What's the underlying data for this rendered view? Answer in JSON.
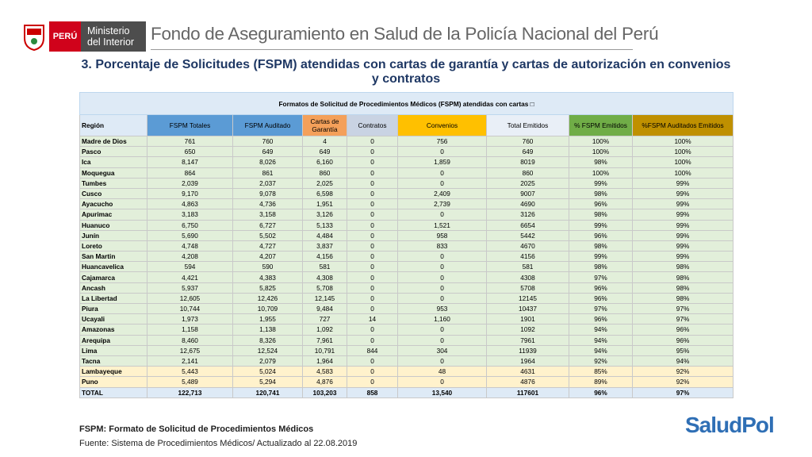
{
  "header": {
    "country": "PERÚ",
    "ministry_line1": "Ministerio",
    "ministry_line2": "del Interior",
    "organization": "Fondo de Aseguramiento en Salud de la Policía Nacional del Perú"
  },
  "title": "3. Porcentaje de Solicitudes (FSPM) atendidas con cartas de garantía y cartas de autorización en convenios y contratos",
  "table": {
    "caption": "Formatos de Solicitud de Procedimientos Médicos (FSPM) atendidas con cartas □",
    "columns": [
      "Región",
      "FSPM Totales",
      "FSPM Auditado",
      "Cartas de Garantía",
      "Contratos",
      "Convenios",
      "Total Emitidos",
      "% FSPM Emitidos",
      "%FSPM Auditados Emitidos"
    ],
    "rows": [
      [
        "Madre de Dios",
        "761",
        "760",
        "4",
        "0",
        "756",
        "760",
        "100%",
        "100%"
      ],
      [
        "Pasco",
        "650",
        "649",
        "649",
        "0",
        "0",
        "649",
        "100%",
        "100%"
      ],
      [
        "Ica",
        "8,147",
        "8,026",
        "6,160",
        "0",
        "1,859",
        "8019",
        "98%",
        "100%"
      ],
      [
        "Moquegua",
        "864",
        "861",
        "860",
        "0",
        "0",
        "860",
        "100%",
        "100%"
      ],
      [
        "Tumbes",
        "2,039",
        "2,037",
        "2,025",
        "0",
        "0",
        "2025",
        "99%",
        "99%"
      ],
      [
        "Cusco",
        "9,170",
        "9,078",
        "6,598",
        "0",
        "2,409",
        "9007",
        "98%",
        "99%"
      ],
      [
        "Ayacucho",
        "4,863",
        "4,736",
        "1,951",
        "0",
        "2,739",
        "4690",
        "96%",
        "99%"
      ],
      [
        "Apurimac",
        "3,183",
        "3,158",
        "3,126",
        "0",
        "0",
        "3126",
        "98%",
        "99%"
      ],
      [
        "Huanuco",
        "6,750",
        "6,727",
        "5,133",
        "0",
        "1,521",
        "6654",
        "99%",
        "99%"
      ],
      [
        "Junín",
        "5,690",
        "5,502",
        "4,484",
        "0",
        "958",
        "5442",
        "96%",
        "99%"
      ],
      [
        "Loreto",
        "4,748",
        "4,727",
        "3,837",
        "0",
        "833",
        "4670",
        "98%",
        "99%"
      ],
      [
        "San Martin",
        "4,208",
        "4,207",
        "4,156",
        "0",
        "0",
        "4156",
        "99%",
        "99%"
      ],
      [
        "Huancavelica",
        "594",
        "590",
        "581",
        "0",
        "0",
        "581",
        "98%",
        "98%"
      ],
      [
        "Cajamarca",
        "4,421",
        "4,383",
        "4,308",
        "0",
        "0",
        "4308",
        "97%",
        "98%"
      ],
      [
        "Ancash",
        "5,937",
        "5,825",
        "5,708",
        "0",
        "0",
        "5708",
        "96%",
        "98%"
      ],
      [
        "La Libertad",
        "12,605",
        "12,426",
        "12,145",
        "0",
        "0",
        "12145",
        "96%",
        "98%"
      ],
      [
        "Piura",
        "10,744",
        "10,709",
        "9,484",
        "0",
        "953",
        "10437",
        "97%",
        "97%"
      ],
      [
        "Ucayali",
        "1,973",
        "1,955",
        "727",
        "14",
        "1,160",
        "1901",
        "96%",
        "97%"
      ],
      [
        "Amazonas",
        "1,158",
        "1,138",
        "1,092",
        "0",
        "0",
        "1092",
        "94%",
        "96%"
      ],
      [
        "Arequipa",
        "8,460",
        "8,326",
        "7,961",
        "0",
        "0",
        "7961",
        "94%",
        "96%"
      ],
      [
        "Lima",
        "12,675",
        "12,524",
        "10,791",
        "844",
        "304",
        "11939",
        "94%",
        "95%"
      ],
      [
        "Tacna",
        "2,141",
        "2,079",
        "1,964",
        "0",
        "0",
        "1964",
        "92%",
        "94%"
      ],
      [
        "Lambayeque",
        "5,443",
        "5,024",
        "4,583",
        "0",
        "48",
        "4631",
        "85%",
        "92%"
      ],
      [
        "Puno",
        "5,489",
        "5,294",
        "4,876",
        "0",
        "0",
        "4876",
        "89%",
        "92%"
      ],
      [
        "TOTAL",
        "122,713",
        "120,741",
        "103,203",
        "858",
        "13,540",
        "117601",
        "96%",
        "97%"
      ]
    ]
  },
  "footer": {
    "note": "FSPM: Formato de Solicitud de Procedimientos Médicos",
    "source": "Fuente: Sistema de Procedimientos Médicos/ Actualizado al 22.08.2019",
    "logo": "SaludPol"
  }
}
